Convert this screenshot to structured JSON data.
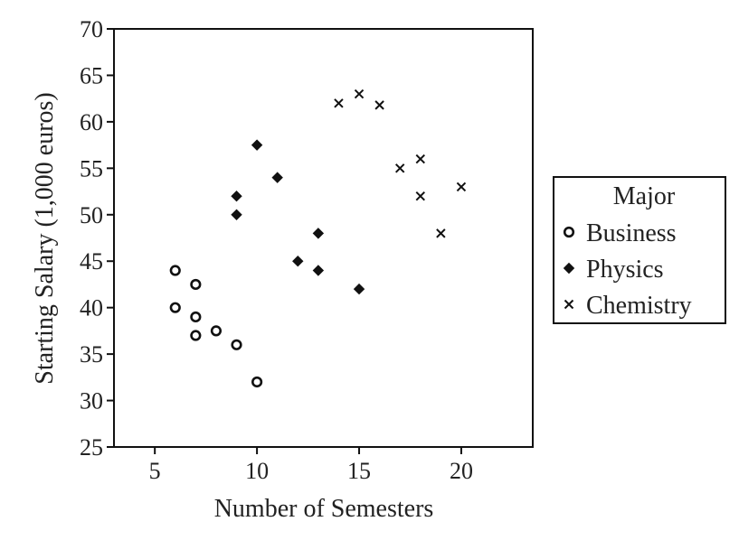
{
  "chart_data": {
    "type": "scatter",
    "title": "",
    "xlabel": "Number of Semesters",
    "ylabel": "Starting Salary (1,000 euros)",
    "xlim": [
      3,
      23.5
    ],
    "ylim": [
      25,
      70
    ],
    "xticks": [
      5,
      10,
      15,
      20
    ],
    "yticks": [
      25,
      30,
      35,
      40,
      45,
      50,
      55,
      60,
      65,
      70
    ],
    "grid": false,
    "legend": {
      "title": "Major",
      "placement": "right"
    },
    "series": [
      {
        "name": "Business",
        "marker": "open-circle",
        "points": [
          {
            "x": 6,
            "y": 44
          },
          {
            "x": 6,
            "y": 40
          },
          {
            "x": 7,
            "y": 42.5
          },
          {
            "x": 7,
            "y": 39
          },
          {
            "x": 7,
            "y": 37
          },
          {
            "x": 8,
            "y": 37.5
          },
          {
            "x": 9,
            "y": 36
          },
          {
            "x": 10,
            "y": 32
          }
        ]
      },
      {
        "name": "Physics",
        "marker": "filled-diamond",
        "points": [
          {
            "x": 9,
            "y": 52
          },
          {
            "x": 9,
            "y": 50
          },
          {
            "x": 10,
            "y": 57.5
          },
          {
            "x": 11,
            "y": 54
          },
          {
            "x": 12,
            "y": 45
          },
          {
            "x": 13,
            "y": 48
          },
          {
            "x": 13,
            "y": 44
          },
          {
            "x": 15,
            "y": 42
          }
        ]
      },
      {
        "name": "Chemistry",
        "marker": "cross",
        "points": [
          {
            "x": 14,
            "y": 62
          },
          {
            "x": 15,
            "y": 63
          },
          {
            "x": 16,
            "y": 61.8
          },
          {
            "x": 17,
            "y": 55
          },
          {
            "x": 18,
            "y": 56
          },
          {
            "x": 18,
            "y": 52
          },
          {
            "x": 19,
            "y": 48
          },
          {
            "x": 20,
            "y": 53
          }
        ]
      }
    ]
  }
}
